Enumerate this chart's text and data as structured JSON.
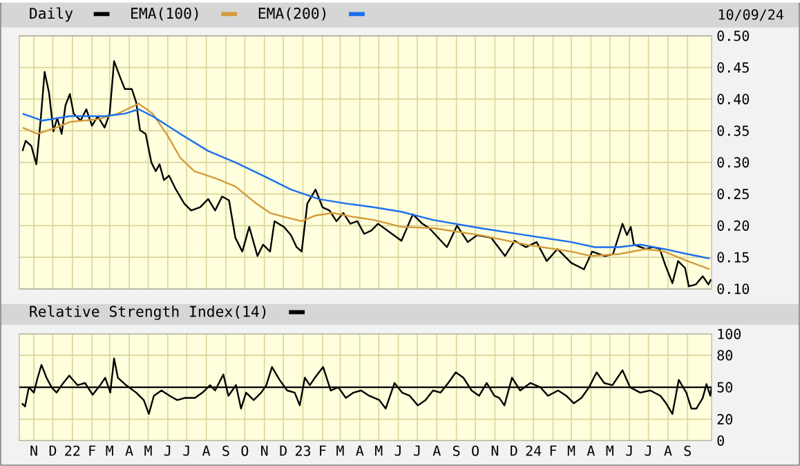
{
  "chart_data": [
    {
      "type": "line",
      "annotations": [
        "10/09/24"
      ],
      "legend": "top",
      "grid": true,
      "tick_labels": "y",
      "xlim": [
        "2021-10-09",
        "2024-10-09"
      ],
      "xticks": [
        {
          "value": "2021-11-01",
          "label": null
        },
        {
          "value": "2021-12-01",
          "label": null
        },
        {
          "value": "2022-01-01",
          "label": null
        },
        {
          "value": "2022-02-01",
          "label": null
        },
        {
          "value": "2022-03-01",
          "label": null
        },
        {
          "value": "2022-04-01",
          "label": null
        },
        {
          "value": "2022-05-01",
          "label": null
        },
        {
          "value": "2022-06-01",
          "label": null
        },
        {
          "value": "2022-07-01",
          "label": null
        },
        {
          "value": "2022-08-01",
          "label": null
        },
        {
          "value": "2022-09-01",
          "label": null
        },
        {
          "value": "2022-10-01",
          "label": null
        },
        {
          "value": "2022-11-01",
          "label": null
        },
        {
          "value": "2022-12-01",
          "label": null
        },
        {
          "value": "2023-01-01",
          "label": null
        },
        {
          "value": "2023-02-01",
          "label": null
        },
        {
          "value": "2023-03-01",
          "label": null
        },
        {
          "value": "2023-04-01",
          "label": null
        },
        {
          "value": "2023-05-01",
          "label": null
        },
        {
          "value": "2023-06-01",
          "label": null
        },
        {
          "value": "2023-07-01",
          "label": null
        },
        {
          "value": "2023-08-01",
          "label": null
        },
        {
          "value": "2023-09-01",
          "label": null
        },
        {
          "value": "2023-10-01",
          "label": null
        },
        {
          "value": "2023-11-01",
          "label": null
        },
        {
          "value": "2023-12-01",
          "label": null
        },
        {
          "value": "2024-01-01",
          "label": null
        },
        {
          "value": "2024-02-01",
          "label": null
        },
        {
          "value": "2024-03-01",
          "label": null
        },
        {
          "value": "2024-04-01",
          "label": null
        },
        {
          "value": "2024-05-01",
          "label": null
        },
        {
          "value": "2024-06-01",
          "label": null
        },
        {
          "value": "2024-07-01",
          "label": null
        },
        {
          "value": "2024-08-01",
          "label": null
        },
        {
          "value": "2024-09-01",
          "label": null
        }
      ],
      "ylim": [
        0.1,
        0.5
      ],
      "yticks": [
        {
          "value": 0.1,
          "label": "0.10"
        },
        {
          "value": 0.15,
          "label": "0.15"
        },
        {
          "value": 0.2,
          "label": "0.20"
        },
        {
          "value": 0.25,
          "label": "0.25"
        },
        {
          "value": 0.3,
          "label": "0.30"
        },
        {
          "value": 0.35,
          "label": "0.35"
        },
        {
          "value": 0.4,
          "label": "0.40"
        },
        {
          "value": 0.45,
          "label": "0.45"
        },
        {
          "value": 0.5,
          "label": "0.50"
        }
      ],
      "series": [
        {
          "name": "Daily",
          "color": "#000000",
          "x": [
            "2021-10-14",
            "2021-10-19",
            "2021-10-28",
            "2021-11-05",
            "2021-11-12",
            "2021-11-18",
            "2021-11-25",
            "2021-12-02",
            "2021-12-08",
            "2021-12-15",
            "2021-12-21",
            "2021-12-28",
            "2022-01-03",
            "2022-01-14",
            "2022-01-23",
            "2022-02-01",
            "2022-02-10",
            "2022-02-21",
            "2022-03-01",
            "2022-03-08",
            "2022-03-17",
            "2022-03-25",
            "2022-04-05",
            "2022-04-12",
            "2022-04-18",
            "2022-04-27",
            "2022-05-06",
            "2022-05-13",
            "2022-05-19",
            "2022-05-26",
            "2022-06-03",
            "2022-06-14",
            "2022-06-27",
            "2022-07-08",
            "2022-07-22",
            "2022-08-04",
            "2022-08-15",
            "2022-08-26",
            "2022-09-06",
            "2022-09-16",
            "2022-09-27",
            "2022-10-08",
            "2022-10-21",
            "2022-10-30",
            "2022-11-10",
            "2022-11-17",
            "2022-12-02",
            "2022-12-13",
            "2022-12-22",
            "2022-12-30",
            "2023-01-08",
            "2023-01-21",
            "2023-02-01",
            "2023-02-12",
            "2023-02-23",
            "2023-03-06",
            "2023-03-17",
            "2023-03-28",
            "2023-04-08",
            "2023-04-19",
            "2023-04-30",
            "2023-05-22",
            "2023-06-06",
            "2023-06-24",
            "2023-07-09",
            "2023-07-20",
            "2023-08-17",
            "2023-09-02",
            "2023-09-19",
            "2023-10-04",
            "2023-10-26",
            "2023-11-17",
            "2023-12-02",
            "2023-12-20",
            "2024-01-06",
            "2024-01-22",
            "2024-02-08",
            "2024-03-01",
            "2024-03-21",
            "2024-04-03",
            "2024-04-23",
            "2024-05-06",
            "2024-05-21",
            "2024-05-28",
            "2024-06-03",
            "2024-06-08",
            "2024-06-27",
            "2024-07-08",
            "2024-07-19",
            "2024-07-28",
            "2024-08-08",
            "2024-08-17",
            "2024-08-28",
            "2024-09-03",
            "2024-09-14",
            "2024-09-25",
            "2024-10-04",
            "2024-10-08"
          ],
          "values": [
            0.318,
            0.334,
            0.326,
            0.297,
            0.37,
            0.443,
            0.41,
            0.349,
            0.37,
            0.345,
            0.39,
            0.408,
            0.377,
            0.366,
            0.384,
            0.358,
            0.373,
            0.355,
            0.377,
            0.46,
            0.436,
            0.416,
            0.416,
            0.395,
            0.351,
            0.345,
            0.3,
            0.286,
            0.297,
            0.272,
            0.279,
            0.257,
            0.235,
            0.224,
            0.229,
            0.242,
            0.224,
            0.246,
            0.24,
            0.181,
            0.159,
            0.198,
            0.152,
            0.17,
            0.159,
            0.207,
            0.198,
            0.185,
            0.166,
            0.159,
            0.235,
            0.257,
            0.229,
            0.224,
            0.207,
            0.22,
            0.203,
            0.207,
            0.187,
            0.192,
            0.203,
            0.187,
            0.176,
            0.218,
            0.203,
            0.196,
            0.166,
            0.2,
            0.174,
            0.185,
            0.181,
            0.152,
            0.176,
            0.166,
            0.174,
            0.144,
            0.163,
            0.141,
            0.131,
            0.159,
            0.152,
            0.155,
            0.203,
            0.185,
            0.198,
            0.17,
            0.163,
            0.166,
            0.163,
            0.137,
            0.109,
            0.144,
            0.133,
            0.104,
            0.107,
            0.12,
            0.107,
            0.115
          ]
        },
        {
          "name": "EMA(100)",
          "color": "#d49b3a",
          "x": [
            "2021-10-14",
            "2021-11-07",
            "2021-12-06",
            "2021-12-28",
            "2022-02-10",
            "2022-03-14",
            "2022-04-16",
            "2022-05-08",
            "2022-05-30",
            "2022-06-21",
            "2022-07-13",
            "2022-08-15",
            "2022-09-16",
            "2022-10-19",
            "2022-11-10",
            "2022-12-02",
            "2022-12-30",
            "2023-01-21",
            "2023-02-17",
            "2023-03-21",
            "2023-04-23",
            "2023-06-06",
            "2023-07-26",
            "2023-10-09",
            "2023-12-20",
            "2024-03-01",
            "2024-04-01",
            "2024-05-15",
            "2024-06-27",
            "2024-07-26",
            "2024-09-01",
            "2024-10-06"
          ],
          "values": [
            0.355,
            0.345,
            0.355,
            0.364,
            0.368,
            0.377,
            0.393,
            0.377,
            0.345,
            0.307,
            0.286,
            0.275,
            0.262,
            0.235,
            0.22,
            0.214,
            0.207,
            0.216,
            0.22,
            0.214,
            0.209,
            0.198,
            0.196,
            0.185,
            0.17,
            0.159,
            0.152,
            0.155,
            0.163,
            0.159,
            0.144,
            0.131
          ]
        },
        {
          "name": "EMA(200)",
          "color": "#1a6ff0",
          "x": [
            "2021-10-14",
            "2021-11-14",
            "2021-12-28",
            "2022-02-21",
            "2022-03-25",
            "2022-04-16",
            "2022-05-08",
            "2022-06-21",
            "2022-08-04",
            "2022-09-16",
            "2022-10-30",
            "2022-12-13",
            "2023-01-26",
            "2023-03-10",
            "2023-04-23",
            "2023-06-06",
            "2023-07-26",
            "2023-10-09",
            "2023-12-20",
            "2024-03-01",
            "2024-04-07",
            "2024-05-15",
            "2024-06-18",
            "2024-07-26",
            "2024-09-01",
            "2024-10-06"
          ],
          "values": [
            0.377,
            0.366,
            0.373,
            0.373,
            0.377,
            0.384,
            0.373,
            0.345,
            0.318,
            0.3,
            0.279,
            0.257,
            0.242,
            0.235,
            0.229,
            0.222,
            0.209,
            0.196,
            0.185,
            0.174,
            0.166,
            0.166,
            0.17,
            0.163,
            0.155,
            0.148
          ]
        }
      ]
    },
    {
      "type": "line",
      "legend": "top",
      "grid": true,
      "xlim": [
        "2021-10-09",
        "2024-10-09"
      ],
      "xticks": [
        {
          "value": "2021-11-01",
          "label": "N"
        },
        {
          "value": "2021-12-01",
          "label": "D"
        },
        {
          "value": "2022-01-01",
          "label": "22"
        },
        {
          "value": "2022-02-01",
          "label": "F"
        },
        {
          "value": "2022-03-01",
          "label": "M"
        },
        {
          "value": "2022-04-01",
          "label": "A"
        },
        {
          "value": "2022-05-01",
          "label": "M"
        },
        {
          "value": "2022-06-01",
          "label": "J"
        },
        {
          "value": "2022-07-01",
          "label": "J"
        },
        {
          "value": "2022-08-01",
          "label": "A"
        },
        {
          "value": "2022-09-01",
          "label": "S"
        },
        {
          "value": "2022-10-01",
          "label": "O"
        },
        {
          "value": "2022-11-01",
          "label": "N"
        },
        {
          "value": "2022-12-01",
          "label": "D"
        },
        {
          "value": "2023-01-01",
          "label": "23"
        },
        {
          "value": "2023-02-01",
          "label": "F"
        },
        {
          "value": "2023-03-01",
          "label": "M"
        },
        {
          "value": "2023-04-01",
          "label": "A"
        },
        {
          "value": "2023-05-01",
          "label": "M"
        },
        {
          "value": "2023-06-01",
          "label": "J"
        },
        {
          "value": "2023-07-01",
          "label": "J"
        },
        {
          "value": "2023-08-01",
          "label": "A"
        },
        {
          "value": "2023-09-01",
          "label": "S"
        },
        {
          "value": "2023-10-01",
          "label": "O"
        },
        {
          "value": "2023-11-01",
          "label": "N"
        },
        {
          "value": "2023-12-01",
          "label": "D"
        },
        {
          "value": "2024-01-01",
          "label": "24"
        },
        {
          "value": "2024-02-01",
          "label": "F"
        },
        {
          "value": "2024-03-01",
          "label": "M"
        },
        {
          "value": "2024-04-01",
          "label": "A"
        },
        {
          "value": "2024-05-01",
          "label": "M"
        },
        {
          "value": "2024-06-01",
          "label": "J"
        },
        {
          "value": "2024-07-01",
          "label": "J"
        },
        {
          "value": "2024-08-01",
          "label": "A"
        },
        {
          "value": "2024-09-01",
          "label": "S"
        }
      ],
      "ylim": [
        0,
        100
      ],
      "yticks": [
        0,
        20,
        50,
        80,
        100
      ],
      "ref_lines": [
        {
          "axis": "y",
          "value": 50,
          "color": "#000000"
        }
      ],
      "series": [
        {
          "name": "Relative Strength Index(14)",
          "color": "#000000",
          "x": [
            "2021-10-13",
            "2021-10-18",
            "2021-10-24",
            "2021-11-01",
            "2021-11-07",
            "2021-11-13",
            "2021-11-21",
            "2021-11-29",
            "2021-12-07",
            "2021-12-15",
            "2021-12-27",
            "2022-01-09",
            "2022-01-21",
            "2022-02-02",
            "2022-02-14",
            "2022-02-22",
            "2022-03-02",
            "2022-03-08",
            "2022-03-14",
            "2022-03-27",
            "2022-04-12",
            "2022-04-24",
            "2022-05-02",
            "2022-05-10",
            "2022-05-22",
            "2022-06-04",
            "2022-06-16",
            "2022-06-28",
            "2022-07-14",
            "2022-07-26",
            "2022-08-07",
            "2022-08-15",
            "2022-08-28",
            "2022-09-05",
            "2022-09-17",
            "2022-09-25",
            "2022-10-03",
            "2022-10-15",
            "2022-10-27",
            "2022-11-04",
            "2022-11-13",
            "2022-11-25",
            "2022-12-07",
            "2022-12-19",
            "2022-12-27",
            "2023-01-04",
            "2023-01-12",
            "2023-01-20",
            "2023-02-02",
            "2023-02-14",
            "2023-02-26",
            "2023-03-10",
            "2023-03-22",
            "2023-04-03",
            "2023-04-16",
            "2023-05-02",
            "2023-05-12",
            "2023-05-26",
            "2023-06-07",
            "2023-06-19",
            "2023-07-02",
            "2023-07-14",
            "2023-07-26",
            "2023-08-07",
            "2023-08-19",
            "2023-08-31",
            "2023-09-12",
            "2023-09-25",
            "2023-10-07",
            "2023-10-19",
            "2023-10-31",
            "2023-11-08",
            "2023-11-16",
            "2023-11-28",
            "2023-12-11",
            "2023-12-27",
            "2024-01-12",
            "2024-01-24",
            "2024-02-09",
            "2024-02-22",
            "2024-03-05",
            "2024-03-17",
            "2024-03-29",
            "2024-04-10",
            "2024-04-22",
            "2024-05-05",
            "2024-05-21",
            "2024-06-02",
            "2024-06-18",
            "2024-07-04",
            "2024-07-20",
            "2024-07-29",
            "2024-08-08",
            "2024-08-18",
            "2024-08-30",
            "2024-09-07",
            "2024-09-15",
            "2024-09-25",
            "2024-10-01",
            "2024-10-07",
            "2024-10-09"
          ],
          "values": [
            35,
            32,
            50,
            45,
            59,
            71,
            59,
            50,
            45,
            52,
            61,
            52,
            54,
            43,
            52,
            59,
            45,
            77,
            59,
            52,
            45,
            38,
            25,
            42,
            47,
            42,
            38,
            40,
            40,
            45,
            52,
            47,
            62,
            42,
            52,
            30,
            45,
            38,
            45,
            52,
            69,
            57,
            47,
            45,
            33,
            59,
            52,
            59,
            69,
            47,
            50,
            40,
            45,
            47,
            42,
            38,
            30,
            54,
            45,
            42,
            33,
            38,
            47,
            45,
            54,
            64,
            59,
            47,
            42,
            54,
            42,
            40,
            33,
            59,
            47,
            54,
            50,
            42,
            47,
            42,
            35,
            40,
            50,
            64,
            54,
            52,
            66,
            50,
            45,
            47,
            42,
            35,
            25,
            57,
            45,
            30,
            30,
            40,
            53,
            42,
            50
          ]
        }
      ]
    }
  ]
}
